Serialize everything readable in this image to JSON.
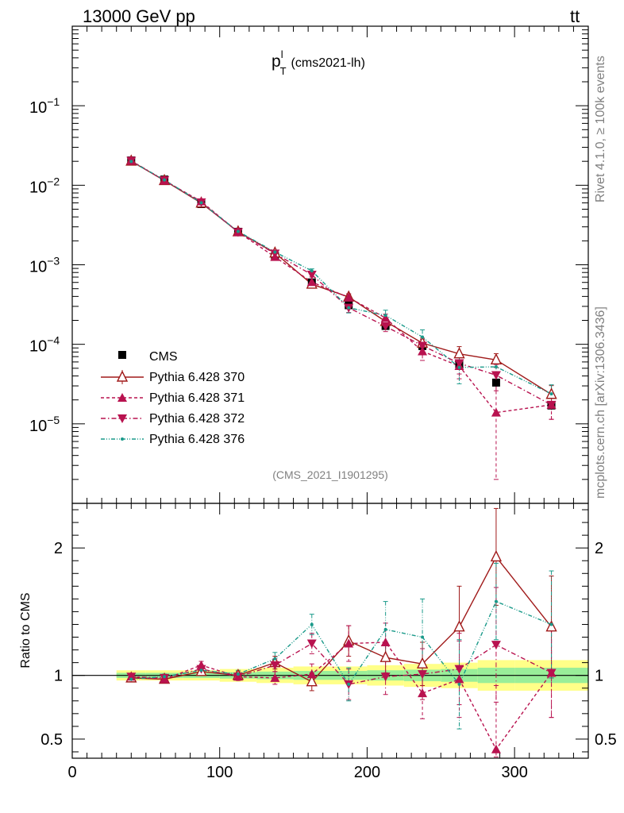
{
  "header": {
    "left": "13000 GeV pp",
    "right_main": "tt",
    "right_bar": "¯"
  },
  "side_labels": {
    "rivet": "Rivet 4.1.0, ≥ 100k events",
    "mcplots": "mcplots.cern.ch [arXiv:1306.3436]"
  },
  "chart_data": {
    "type": "line",
    "title_main": "p",
    "title_sup": "l",
    "title_sub": "T",
    "title_rest": "(cms2021-lh)",
    "watermark": "(CMS_2021_I1901295)",
    "xlim": [
      0,
      350
    ],
    "ylim": [
      1e-06,
      1
    ],
    "ratio_ylim": [
      0.35,
      2.35
    ],
    "ylabel_ratio": "Ratio to CMS",
    "x_ticks": [
      "0",
      "100",
      "200",
      "300"
    ],
    "y_ticks_main": [
      {
        "base": "10",
        "exp": "−1",
        "value": 0.1
      },
      {
        "base": "10",
        "exp": "−2",
        "value": 0.01
      },
      {
        "base": "10",
        "exp": "−3",
        "value": 0.001
      },
      {
        "base": "10",
        "exp": "−4",
        "value": 0.0001
      },
      {
        "base": "10",
        "exp": "−5",
        "value": 1e-05
      }
    ],
    "y_ticks_ratio": [
      {
        "label": "0.5",
        "value": 0.5
      },
      {
        "label": "1",
        "value": 1
      },
      {
        "label": "2",
        "value": 2
      }
    ],
    "x": [
      40,
      62.5,
      87.5,
      112.5,
      137.5,
      162.5,
      187.5,
      212.5,
      237.5,
      262.5,
      287.5,
      325
    ],
    "xerr": [
      10,
      12.5,
      12.5,
      12.5,
      12.5,
      12.5,
      12.5,
      12.5,
      12.5,
      12.5,
      12.5,
      25
    ],
    "data": {
      "name": "CMS",
      "values": [
        0.0205,
        0.0118,
        0.0058,
        0.0026,
        0.00128,
        0.0006,
        0.00031,
        0.00017,
        9.5e-05,
        5.5e-05,
        3.3e-05,
        1.7e-05
      ],
      "rel_err": [
        0.02,
        0.02,
        0.02,
        0.025,
        0.03,
        0.035,
        0.035,
        0.04,
        0.045,
        0.05,
        0.06,
        0.06
      ]
    },
    "series": [
      {
        "name": "Pythia 6.428 370",
        "color": "#a01a1a",
        "marker": "open-triangle-up",
        "dash": "",
        "ratio": [
          0.98,
          0.97,
          1.03,
          1.0,
          1.1,
          0.95,
          1.27,
          1.14,
          1.09,
          1.38,
          1.93,
          1.38
        ],
        "ratio_err": [
          0.02,
          0.02,
          0.02,
          0.03,
          0.05,
          0.07,
          0.12,
          0.12,
          0.17,
          0.32,
          0.38,
          0.4
        ]
      },
      {
        "name": "Pythia 6.428 371",
        "color": "#b8124f",
        "marker": "filled-triangle-up",
        "dash": "4,3",
        "ratio": [
          0.99,
          0.97,
          1.08,
          0.99,
          0.98,
          1.01,
          1.25,
          1.26,
          0.86,
          0.97,
          0.42,
          1.02
        ],
        "ratio_err": [
          0.02,
          0.02,
          0.03,
          0.03,
          0.05,
          0.08,
          0.14,
          0.15,
          0.2,
          0.3,
          0.5,
          0.35
        ]
      },
      {
        "name": "Pythia 6.428 372",
        "color": "#b8124f",
        "marker": "filled-triangle-down",
        "dash": "6,3,1.5,3",
        "ratio": [
          0.99,
          0.98,
          1.05,
          0.99,
          1.08,
          1.25,
          0.93,
          0.99,
          1.01,
          1.05,
          1.24,
          1.02
        ],
        "ratio_err": [
          0.02,
          0.02,
          0.03,
          0.03,
          0.05,
          0.08,
          0.12,
          0.14,
          0.2,
          0.28,
          0.45,
          0.35
        ]
      },
      {
        "name": "Pythia 6.428 376",
        "color": "#1a9a8a",
        "marker": "small-dot",
        "dash": "5,2,1,2,1,2",
        "ratio": [
          0.97,
          0.99,
          1.04,
          1.01,
          1.13,
          1.4,
          0.93,
          1.36,
          1.3,
          0.93,
          1.58,
          1.4
        ],
        "ratio_err": [
          0.02,
          0.02,
          0.03,
          0.03,
          0.05,
          0.08,
          0.13,
          0.22,
          0.3,
          0.35,
          0.3,
          0.42
        ]
      }
    ],
    "legend_position": "bottom-left"
  }
}
